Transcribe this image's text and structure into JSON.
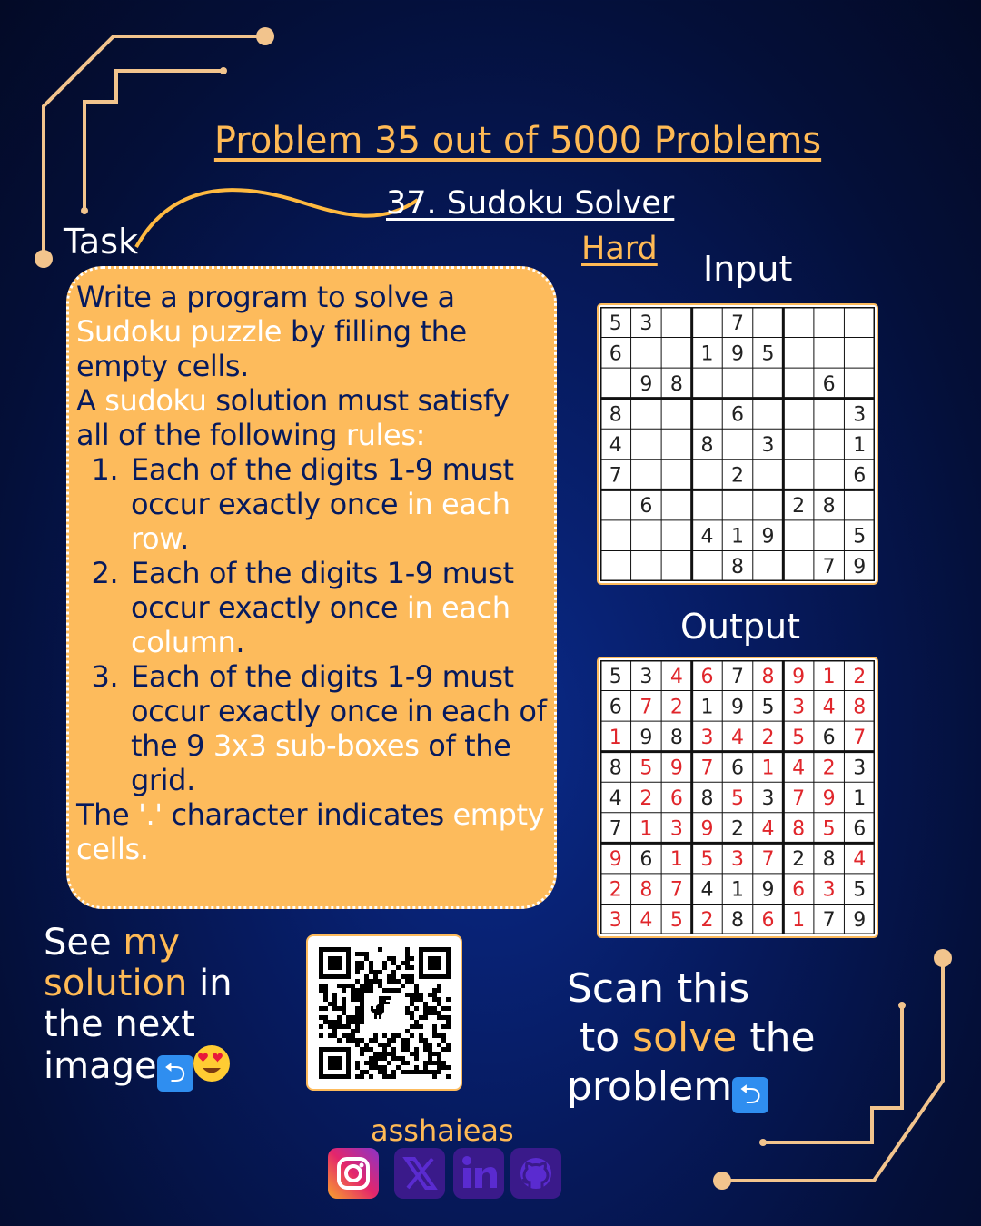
{
  "header": {
    "title": "Problem 35 out of 5000 Problems",
    "subtitle": "37. Sudoku Solver",
    "difficulty": "Hard"
  },
  "task": {
    "label": "Task",
    "p1_a": "Write a program to solve a ",
    "p1_b": "Sudoku puzzle",
    "p1_c": " by filling the empty cells.",
    "p2_a": "A ",
    "p2_b": "sudoku",
    "p2_c": " solution must satisfy all of the following ",
    "p2_d": "rules:",
    "r1_a": "Each of the digits 1-9 must occur exactly once ",
    "r1_b": "in each row",
    "r1_c": ".",
    "r2_a": "Each of the digits 1-9 must occur exactly once ",
    "r2_b": "in each column",
    "r2_c": ".",
    "r3_a": "Each of the digits 1-9 must occur exactly once in each of the 9 ",
    "r3_b": "3x3 sub-boxes",
    "r3_c": " of the grid.",
    "p3_a": "The ",
    "p3_b": "'.'",
    "p3_c": " character indicates ",
    "p3_d": "empty cells."
  },
  "input": {
    "label": "Input",
    "rows": [
      "53..7....",
      "6..195...",
      ".98....6.",
      "8...6...3",
      "4..8.3..1",
      "7...2...6",
      ".6....28.",
      "...419..5",
      "....8..79"
    ]
  },
  "output": {
    "label": "Output",
    "rows": [
      "534678912",
      "672195348",
      "198342567",
      "859761423",
      "426853791",
      "713924856",
      "961537284",
      "287419635",
      "345286179"
    ]
  },
  "cta_left": {
    "l1_a": "See ",
    "l1_b": "my",
    "l2_a": "solution",
    "l2_b": " in",
    "l3": "the next",
    "l4": "image"
  },
  "cta_right": {
    "l1": "Scan this",
    "l2_a": " to ",
    "l2_b": "solve",
    "l2_c": " the",
    "l3": "problem"
  },
  "footer": {
    "handle": "asshaieas"
  },
  "colors": {
    "accent": "#ffba55",
    "box": "#fdbb5c",
    "background": "#061a5e",
    "given_digit": "#222222",
    "solved_digit": "#e0262b"
  },
  "icons": [
    "return-arrow-icon",
    "heart-eyes-emoji-icon",
    "qr-code",
    "instagram-icon",
    "x-icon",
    "linkedin-icon",
    "github-icon"
  ]
}
